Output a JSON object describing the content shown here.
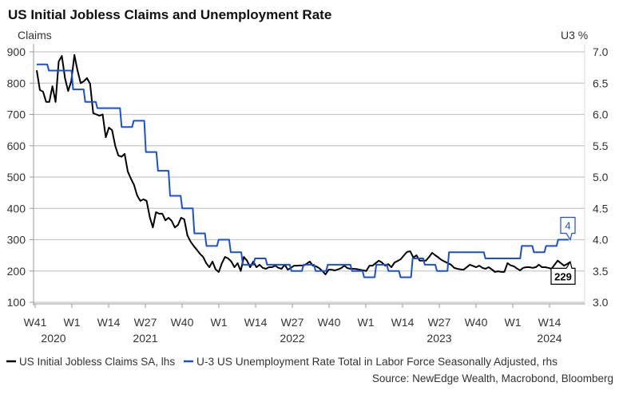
{
  "chart_data": {
    "type": "line",
    "title": "US Initial Jobless Claims and Unemployment Rate",
    "ylabel_left": "Claims",
    "ylabel_right": "U3 %",
    "ylim_left": [
      100,
      900
    ],
    "ylim_right": [
      3.0,
      7.0
    ],
    "yticks_left": [
      "900",
      "800",
      "700",
      "600",
      "500",
      "400",
      "300",
      "200",
      "100"
    ],
    "yticks_right": [
      "7.0",
      "6.5",
      "6.0",
      "5.5",
      "5.0",
      "4.5",
      "4.0",
      "3.5",
      "3.0"
    ],
    "xticks": [
      "W41",
      "W1",
      "W14",
      "W27",
      "W40",
      "W1",
      "W14",
      "W27",
      "W40",
      "W1",
      "W14",
      "W27",
      "W40",
      "W1",
      "W14"
    ],
    "xyears": [
      {
        "label": "2020",
        "tick": 0.5
      },
      {
        "label": "2021",
        "tick": 3
      },
      {
        "label": "2022",
        "tick": 7
      },
      {
        "label": "2023",
        "tick": 11
      },
      {
        "label": "2024",
        "tick": 14
      }
    ],
    "grid": true,
    "series": [
      {
        "name": "US Initial Jobless Claims SA, lhs",
        "axis": "left",
        "color": "#000000",
        "frequency": "weekly",
        "start": "2020-W41",
        "end": "2024-W20",
        "last_label": "229",
        "values": [
          841,
          778,
          773,
          740,
          740,
          790,
          740,
          869,
          887,
          816,
          775,
          806,
          890,
          840,
          800,
          806,
          816,
          798,
          704,
          700,
          696,
          700,
          627,
          658,
          650,
          600,
          569,
          565,
          574,
          518,
          495,
          475,
          441,
          424,
          429,
          424,
          373,
          339,
          388,
          383,
          383,
          362,
          370,
          360,
          339,
          347,
          370,
          365,
          314,
          294,
          280,
          268,
          255,
          245,
          225,
          212,
          230,
          205,
          197,
          225,
          245,
          240,
          230,
          212,
          225,
          200,
          245,
          233,
          212,
          230,
          212,
          220,
          210,
          207,
          212,
          212,
          217,
          210,
          207,
          220,
          204,
          210,
          217,
          217,
          218,
          217,
          223,
          230,
          217,
          215,
          209,
          200,
          189,
          204,
          204,
          202,
          205,
          209,
          217,
          209,
          207,
          207,
          206,
          204,
          202,
          200,
          217,
          217,
          225,
          233,
          227,
          217,
          222,
          212,
          227,
          232,
          238,
          250,
          261,
          263,
          243,
          250,
          233,
          233,
          233,
          245,
          258,
          250,
          243,
          235,
          230,
          225,
          220,
          210,
          207,
          205,
          204,
          212,
          220,
          216,
          212,
          217,
          210,
          207,
          212,
          205,
          197,
          199,
          197,
          197,
          225,
          218,
          215,
          208,
          202,
          210,
          212,
          212,
          210,
          212,
          220,
          212,
          212,
          210,
          207,
          220,
          233,
          225,
          217,
          222,
          229
        ]
      },
      {
        "name": "U-3 US Unemployment Rate Total in Labor Force Seasonally Adjusted, rhs",
        "axis": "right",
        "color": "#1a4fd6",
        "frequency": "monthly",
        "start": "2020-10",
        "end": "2024-05",
        "last_label": "4",
        "values": [
          6.8,
          6.7,
          6.7,
          6.4,
          6.2,
          6.1,
          6.1,
          5.8,
          5.9,
          5.4,
          5.1,
          4.7,
          4.5,
          4.1,
          3.9,
          4.0,
          3.8,
          3.6,
          3.7,
          3.6,
          3.6,
          3.5,
          3.6,
          3.5,
          3.6,
          3.6,
          3.5,
          3.4,
          3.6,
          3.5,
          3.4,
          3.7,
          3.6,
          3.5,
          3.8,
          3.8,
          3.8,
          3.7,
          3.7,
          3.7,
          3.9,
          3.8,
          3.9,
          4.0
        ]
      }
    ],
    "legend_position": "bottom-left",
    "source": "Source: NewEdge Wealth, Macrobond, Bloomberg"
  }
}
